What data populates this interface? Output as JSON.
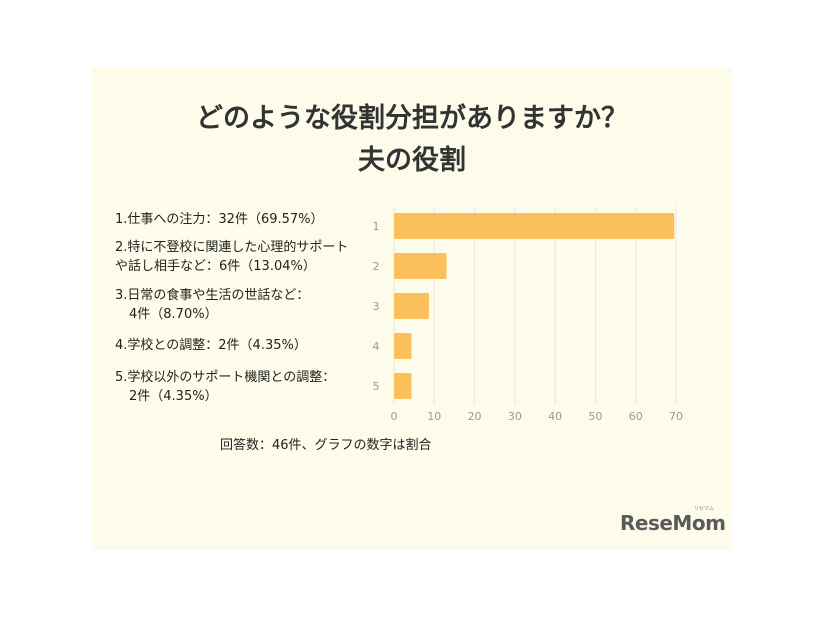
{
  "title_line1": "どのような役割分担がありますか？",
  "title_line2": "夫の役割",
  "legend_items": [
    {
      "lines": [
        "1.仕事への注力：32件（69.57%）"
      ]
    },
    {
      "lines": [
        "2.特に不登校に関連した心理的サポート",
        "や話し相手など：6件（13.04%）"
      ]
    },
    {
      "lines": [
        "3.日常の食事や生活の世話など：",
        "4件（8.70%）"
      ]
    },
    {
      "lines": [
        "4.学校との調整：2件（4.35%）"
      ]
    },
    {
      "lines": [
        "5.学校以外のサポート機関との調整：",
        "2件（4.35%）"
      ]
    }
  ],
  "note": "回答数：46件、グラフの数字は割合",
  "logo": "ReseMom",
  "logo_kana": "リセマム",
  "colors": {
    "bar": "#fbbf5b",
    "background": "#fdfcea",
    "grid": "#e6e6e6"
  },
  "chart_data": {
    "type": "bar",
    "orientation": "horizontal",
    "categories": [
      "1",
      "2",
      "3",
      "4",
      "5"
    ],
    "values": [
      69.57,
      13.04,
      8.7,
      4.35,
      4.35
    ],
    "xlim": [
      0,
      70
    ],
    "xticks": [
      0,
      10,
      20,
      30,
      40,
      50,
      60,
      70
    ],
    "grid": true
  }
}
